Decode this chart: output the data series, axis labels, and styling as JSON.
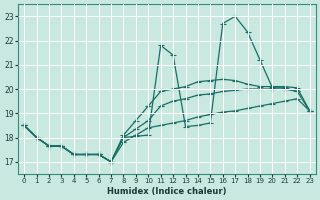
{
  "xlabel": "Humidex (Indice chaleur)",
  "bg_color": "#c8e8e0",
  "grid_color": "#ffffff",
  "line_color": "#1a6e64",
  "xlim": [
    -0.5,
    23.5
  ],
  "ylim": [
    16.5,
    23.5
  ],
  "yticks": [
    17,
    18,
    19,
    20,
    21,
    22,
    23
  ],
  "xticks": [
    0,
    1,
    2,
    3,
    4,
    5,
    6,
    7,
    8,
    9,
    10,
    11,
    12,
    13,
    14,
    15,
    16,
    17,
    18,
    19,
    20,
    21,
    22,
    23
  ],
  "line1_x": [
    0,
    1,
    2,
    3,
    4,
    5,
    6,
    7,
    8,
    9,
    10,
    11,
    12,
    13,
    14,
    15,
    16,
    17,
    18,
    19,
    20,
    21,
    22
  ],
  "line1_y": [
    18.5,
    18.0,
    17.65,
    17.65,
    17.3,
    17.3,
    17.3,
    17.0,
    18.0,
    18.05,
    18.1,
    21.8,
    21.4,
    18.45,
    18.5,
    18.6,
    22.7,
    23.0,
    22.35,
    21.2,
    20.05,
    20.05,
    19.9
  ],
  "line2_x": [
    0,
    1,
    2,
    3,
    4,
    5,
    6,
    7,
    8,
    9,
    10,
    11,
    12,
    13,
    14,
    15,
    16,
    17,
    18,
    19,
    20,
    21,
    22,
    23
  ],
  "line2_y": [
    18.5,
    18.0,
    17.65,
    17.65,
    17.3,
    17.3,
    17.3,
    17.0,
    18.1,
    18.7,
    19.3,
    19.9,
    20.0,
    20.1,
    20.3,
    20.35,
    20.4,
    20.35,
    20.2,
    20.1,
    20.1,
    20.1,
    20.05,
    19.1
  ],
  "line3_x": [
    0,
    1,
    2,
    3,
    4,
    5,
    6,
    7,
    8,
    9,
    10,
    11,
    12,
    13,
    14,
    15,
    16,
    17,
    18,
    19,
    20,
    21,
    22,
    23
  ],
  "line3_y": [
    18.5,
    18.0,
    17.65,
    17.65,
    17.3,
    17.3,
    17.3,
    17.0,
    17.8,
    18.1,
    18.4,
    18.5,
    18.6,
    18.7,
    18.85,
    18.95,
    19.05,
    19.1,
    19.2,
    19.3,
    19.4,
    19.5,
    19.6,
    19.1
  ],
  "line4_x": [
    0,
    1,
    2,
    3,
    4,
    5,
    6,
    7,
    8,
    9,
    10,
    11,
    12,
    13,
    14,
    15,
    16,
    17,
    18,
    19,
    20,
    21,
    22,
    23
  ],
  "line4_y": [
    18.5,
    18.0,
    17.65,
    17.65,
    17.3,
    17.3,
    17.3,
    17.0,
    18.0,
    18.35,
    18.7,
    19.3,
    19.5,
    19.6,
    19.75,
    19.8,
    19.9,
    19.95,
    20.0,
    20.0,
    20.0,
    20.0,
    19.9,
    19.1
  ]
}
